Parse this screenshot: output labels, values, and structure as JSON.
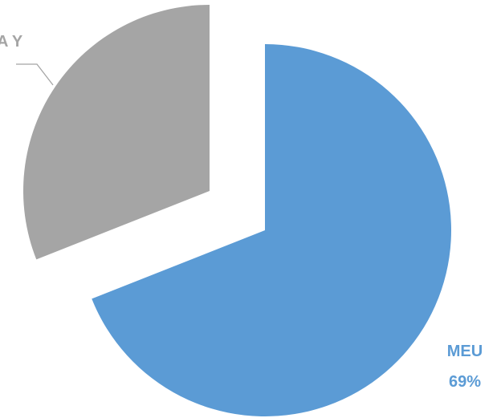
{
  "chart_data": {
    "type": "pie",
    "title": "",
    "legend": "none",
    "exploded": true,
    "slices": [
      {
        "label": "MEU",
        "percent_label": "69%",
        "value": 69,
        "color": "#5B9BD5"
      },
      {
        "label": "A Y",
        "percent_label": "",
        "value": 31,
        "color": "#A5A5A5"
      }
    ]
  }
}
